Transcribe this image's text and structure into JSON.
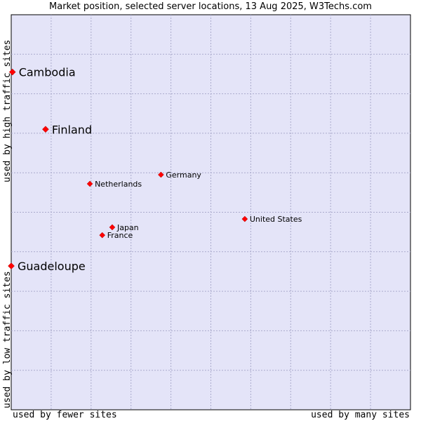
{
  "chart_data": {
    "type": "scatter",
    "title": "Market position, selected server locations, 13 Aug 2025, W3Techs.com",
    "xlabel_left": "used by fewer sites",
    "xlabel_right": "used by many sites",
    "ylabel_high": "used by high traffic sites",
    "ylabel_low": "used by low traffic sites",
    "xlim": [
      0,
      100
    ],
    "ylim": [
      0,
      100
    ],
    "grid": true,
    "point_color": "#ff0000",
    "plot_background": "#e4e4f8",
    "grid_color": "#aaaacc",
    "points": [
      {
        "name": "Cambodia",
        "x": 0.3,
        "y": 85.5,
        "emphasis": true
      },
      {
        "name": "Finland",
        "x": 8.6,
        "y": 71.0,
        "emphasis": true
      },
      {
        "name": "Germany",
        "x": 37.5,
        "y": 59.5,
        "emphasis": false
      },
      {
        "name": "Netherlands",
        "x": 19.7,
        "y": 57.2,
        "emphasis": false
      },
      {
        "name": "United States",
        "x": 58.5,
        "y": 48.3,
        "emphasis": false
      },
      {
        "name": "Japan",
        "x": 25.3,
        "y": 46.2,
        "emphasis": false
      },
      {
        "name": "France",
        "x": 22.8,
        "y": 44.2,
        "emphasis": false
      },
      {
        "name": "Guadeloupe",
        "x": 0.0,
        "y": 36.4,
        "emphasis": true
      }
    ]
  }
}
